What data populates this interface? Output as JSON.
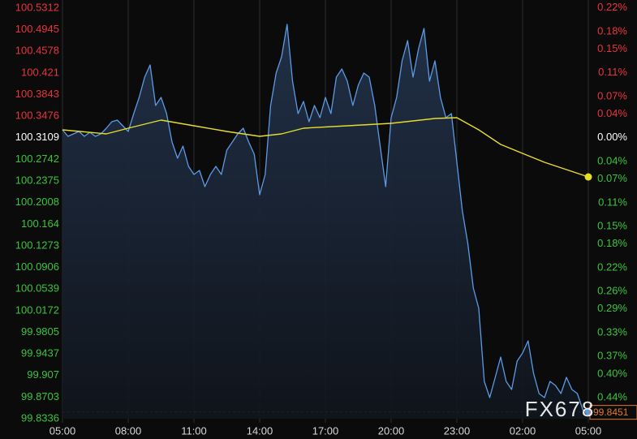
{
  "chart_data": {
    "type": "line",
    "watermark": "FX678",
    "base": 100.3109,
    "last_price": 99.8451,
    "up_color": "#e8343c",
    "down_color": "#3cc43c",
    "base_color": "#ffffff",
    "grid": true,
    "xlim": [
      0,
      24
    ],
    "xticks": [
      {
        "value": 0,
        "label": "05:00"
      },
      {
        "value": 3,
        "label": "08:00"
      },
      {
        "value": 6,
        "label": "11:00"
      },
      {
        "value": 9,
        "label": "14:00"
      },
      {
        "value": 12,
        "label": "17:00"
      },
      {
        "value": 15,
        "label": "20:00"
      },
      {
        "value": 18,
        "label": "23:00"
      },
      {
        "value": 21,
        "label": "02:00"
      },
      {
        "value": 24,
        "label": "05:00"
      }
    ],
    "ylim": [
      99.8336,
      100.5312
    ],
    "yticks": [
      100.5312,
      100.4945,
      100.4578,
      100.421,
      100.3843,
      100.3476,
      100.3109,
      100.2742,
      100.2375,
      100.2008,
      100.164,
      100.1273,
      100.0906,
      100.0539,
      100.0172,
      99.9805,
      99.9437,
      99.907,
      99.8703,
      99.8336
    ],
    "y2lim": [
      -0.4758,
      0.2196
    ],
    "y2ticks": [
      {
        "value": 0.22,
        "label": "0.22%"
      },
      {
        "value": 0.18,
        "label": "0.18%"
      },
      {
        "value": 0.15,
        "label": "0.15%"
      },
      {
        "value": 0.11,
        "label": "0.11%"
      },
      {
        "value": 0.07,
        "label": "0.07%"
      },
      {
        "value": 0.04,
        "label": "0.04%"
      },
      {
        "value": 0,
        "label": "0.00%"
      },
      {
        "value": -0.04,
        "label": "0.04%"
      },
      {
        "value": -0.07,
        "label": "0.07%"
      },
      {
        "value": -0.11,
        "label": "0.11%"
      },
      {
        "value": -0.15,
        "label": "0.15%"
      },
      {
        "value": -0.18,
        "label": "0.18%"
      },
      {
        "value": -0.22,
        "label": "0.22%"
      },
      {
        "value": -0.26,
        "label": "0.26%"
      },
      {
        "value": -0.29,
        "label": "0.29%"
      },
      {
        "value": -0.33,
        "label": "0.33%"
      },
      {
        "value": -0.37,
        "label": "0.37%"
      },
      {
        "value": -0.4,
        "label": "0.40%"
      },
      {
        "value": -0.44,
        "label": "0.44%"
      }
    ],
    "series": [
      {
        "color": "#5b9be6",
        "fill": true,
        "x": [
          0,
          0.25,
          0.5,
          0.75,
          1,
          1.25,
          1.5,
          1.75,
          2,
          2.25,
          2.5,
          2.75,
          3,
          3.25,
          3.5,
          3.75,
          4,
          4.25,
          4.5,
          4.75,
          5,
          5.25,
          5.5,
          5.75,
          6,
          6.25,
          6.5,
          6.75,
          7,
          7.25,
          7.5,
          7.75,
          8,
          8.25,
          8.5,
          8.75,
          9,
          9.25,
          9.5,
          9.75,
          10,
          10.25,
          10.5,
          10.75,
          11,
          11.25,
          11.5,
          11.75,
          12,
          12.25,
          12.5,
          12.75,
          13,
          13.25,
          13.5,
          13.75,
          14,
          14.25,
          14.5,
          14.75,
          15,
          15.25,
          15.5,
          15.75,
          16,
          16.25,
          16.5,
          16.75,
          17,
          17.25,
          17.5,
          17.75,
          18,
          18.25,
          18.5,
          18.75,
          19,
          19.25,
          19.5,
          19.75,
          20,
          20.25,
          20.5,
          20.75,
          21,
          21.25,
          21.5,
          21.75,
          22,
          22.25,
          22.5,
          22.75,
          23,
          23.25,
          23.5,
          23.75,
          24
        ],
        "values": [
          100.3244,
          100.3134,
          100.3175,
          100.3216,
          100.3134,
          100.3203,
          100.3134,
          100.3175,
          100.3272,
          100.3382,
          100.3409,
          100.3313,
          100.3216,
          100.352,
          100.3795,
          100.414,
          100.4347,
          100.3658,
          100.3795,
          100.352,
          100.3037,
          100.2761,
          100.2968,
          100.2624,
          100.2486,
          100.2555,
          100.2279,
          100.2486,
          100.2624,
          100.2486,
          100.2899,
          100.3037,
          100.3175,
          100.3272,
          100.3037,
          100.283,
          100.2141,
          100.2486,
          100.3658,
          100.4209,
          100.4485,
          100.5036,
          100.4071,
          100.352,
          100.3726,
          100.3382,
          100.3658,
          100.3451,
          100.3795,
          100.352,
          100.414,
          100.4278,
          100.4071,
          100.3658,
          100.4002,
          100.4209,
          100.414,
          100.3658,
          100.2968,
          100.2279,
          100.3451,
          100.3795,
          100.4416,
          100.4761,
          100.414,
          100.4623,
          100.4967,
          100.4071,
          100.4416,
          100.3795,
          100.3451,
          100.352,
          100.2692,
          100.1865,
          100.1314,
          100.0555,
          100.0211,
          99.897,
          99.8694,
          99.9039,
          99.9384,
          99.897,
          99.8832,
          99.9315,
          99.9453,
          99.9659,
          99.9108,
          99.8763,
          99.8694,
          99.897,
          99.8901,
          99.8763,
          99.9039,
          99.8832,
          99.8763,
          99.8487,
          99.8451
        ]
      },
      {
        "color": "#e6dc2a",
        "fill": false,
        "end_dot": true,
        "x": [
          0,
          2,
          3,
          4.5,
          6,
          7.5,
          9,
          10,
          11,
          13,
          15,
          17,
          18,
          19,
          20,
          22,
          24
        ],
        "values": [
          100.3244,
          100.3175,
          100.3272,
          100.3409,
          100.3313,
          100.3216,
          100.3134,
          100.3175,
          100.3272,
          100.3313,
          100.3354,
          100.3437,
          100.3451,
          100.3244,
          100.2996,
          100.2692,
          100.2444
        ]
      }
    ]
  }
}
